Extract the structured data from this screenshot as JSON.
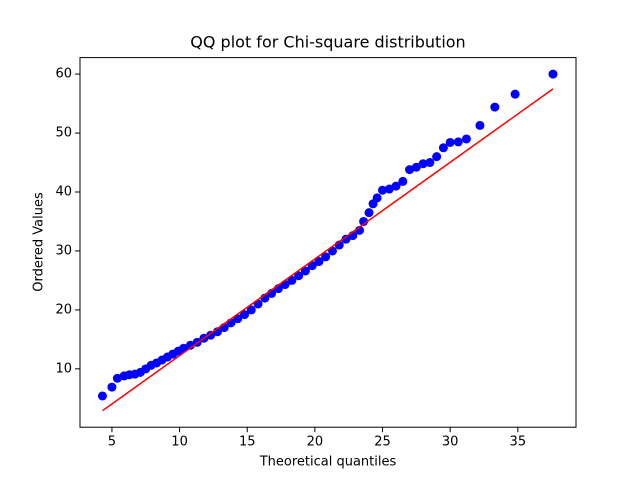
{
  "chart_data": {
    "type": "scatter",
    "title": "QQ plot for Chi-square distribution",
    "x_label": "Theoretical quantiles",
    "y_label": "Ordered Values",
    "xlim": [
      2.64,
      39.3
    ],
    "ylim": [
      0.1,
      62.8
    ],
    "xticks": [
      5,
      10,
      15,
      20,
      25,
      30,
      35
    ],
    "yticks": [
      10,
      20,
      30,
      40,
      50,
      60
    ],
    "series": [
      {
        "style": "markers",
        "color": "#0000ff",
        "x": [
          4.3,
          5.0,
          5.4,
          5.9,
          6.3,
          6.7,
          7.1,
          7.5,
          7.9,
          8.3,
          8.7,
          9.1,
          9.5,
          9.9,
          10.3,
          10.8,
          11.3,
          11.8,
          12.3,
          12.8,
          13.3,
          13.8,
          14.3,
          14.8,
          15.3,
          15.8,
          16.3,
          16.8,
          17.3,
          17.8,
          18.3,
          18.8,
          19.3,
          19.8,
          20.3,
          20.8,
          21.3,
          21.8,
          22.3,
          22.8,
          23.3,
          23.6,
          24.0,
          24.3,
          24.6,
          25.0,
          25.5,
          26.0,
          26.5,
          27.0,
          27.5,
          28.0,
          28.5,
          29.0,
          29.5,
          30.0,
          30.6,
          31.2,
          32.2,
          33.3,
          34.8,
          37.6
        ],
        "values": [
          5.4,
          6.9,
          8.4,
          8.8,
          9.0,
          9.1,
          9.4,
          10.0,
          10.6,
          11.0,
          11.5,
          12.0,
          12.5,
          13.0,
          13.5,
          14.0,
          14.5,
          15.2,
          15.7,
          16.3,
          17.0,
          17.8,
          18.5,
          19.2,
          20.0,
          21.0,
          22.0,
          22.8,
          23.6,
          24.3,
          25.0,
          25.8,
          26.6,
          27.5,
          28.2,
          29.0,
          30.0,
          31.0,
          32.0,
          32.6,
          33.5,
          35.0,
          36.5,
          38.0,
          39.0,
          40.3,
          40.5,
          41.0,
          41.8,
          43.8,
          44.2,
          44.8,
          45.0,
          46.0,
          47.5,
          48.4,
          48.5,
          49.0,
          51.3,
          54.4,
          56.6,
          60.0
        ]
      },
      {
        "style": "line",
        "color": "#ff0000",
        "x": [
          4.3,
          37.6
        ],
        "values": [
          2.9,
          57.5
        ]
      }
    ]
  }
}
